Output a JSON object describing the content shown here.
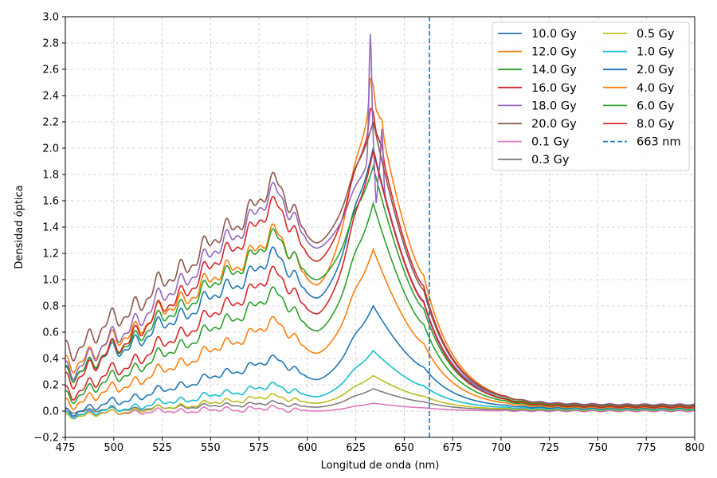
{
  "chart_data": {
    "type": "line",
    "title": "",
    "xlabel": "Longitud de onda (nm)",
    "ylabel": "Densidad óptica",
    "xlim": [
      475,
      800
    ],
    "ylim": [
      -0.2,
      3.0
    ],
    "x_ticks": [
      "475",
      "500",
      "525",
      "550",
      "575",
      "600",
      "625",
      "650",
      "675",
      "700",
      "725",
      "750",
      "775",
      "800"
    ],
    "y_ticks": [
      "−0.2",
      "0.0",
      "0.2",
      "0.4",
      "0.6",
      "0.8",
      "1.0",
      "1.2",
      "1.4",
      "1.6",
      "1.8",
      "2.0",
      "2.2",
      "2.4",
      "2.6",
      "2.8",
      "3.0"
    ],
    "grid": true,
    "legend_position": "top-right",
    "legend_columns": 2,
    "vline": {
      "x": 663,
      "name": "663 nm",
      "color": "#1f77b4",
      "style": "dashed"
    },
    "series": [
      {
        "name": "10.0 Gy",
        "color": "#1f77b4",
        "peak": 2.0,
        "vmid": 1.18,
        "vvalley": 0.86,
        "start": 0.28,
        "tail": 0.035,
        "noise": 0.05,
        "spike": 0.0
      },
      {
        "name": "12.0 Gy",
        "color": "#ff7f0e",
        "peak": 2.47,
        "vmid": 1.35,
        "vvalley": 0.96,
        "start": 0.35,
        "tail": 0.04,
        "noise": 0.055,
        "spike": 0.18
      },
      {
        "name": "14.0 Gy",
        "color": "#2ca02c",
        "peak": 1.86,
        "vmid": 1.32,
        "vvalley": 1.0,
        "start": 0.27,
        "tail": 0.04,
        "noise": 0.05,
        "spike": 0.0
      },
      {
        "name": "16.0 Gy",
        "color": "#d62728",
        "peak": 2.27,
        "vmid": 1.56,
        "vvalley": 1.14,
        "start": 0.22,
        "tail": 0.045,
        "noise": 0.055,
        "spike": 0.12
      },
      {
        "name": "18.0 Gy",
        "color": "#9467bd",
        "peak": 2.0,
        "vmid": 1.66,
        "vvalley": 1.24,
        "start": 0.3,
        "tail": 0.05,
        "noise": 0.06,
        "spike": 0.93
      },
      {
        "name": "20.0 Gy",
        "color": "#8c564b",
        "peak": 2.2,
        "vmid": 1.73,
        "vvalley": 1.28,
        "start": 0.45,
        "tail": 0.045,
        "noise": 0.065,
        "spike": 0.0
      },
      {
        "name": "0.1 Gy",
        "color": "#e377c2",
        "peak": 0.06,
        "vmid": 0.02,
        "vvalley": 0.0,
        "start": -0.02,
        "tail": 0.0,
        "noise": 0.015,
        "spike": 0.0
      },
      {
        "name": "0.3 Gy",
        "color": "#7f7f7f",
        "peak": 0.17,
        "vmid": 0.06,
        "vvalley": 0.03,
        "start": 0.0,
        "tail": 0.005,
        "noise": 0.012,
        "spike": 0.0
      },
      {
        "name": "0.5 Gy",
        "color": "#bcbd22",
        "peak": 0.27,
        "vmid": 0.11,
        "vvalley": 0.06,
        "start": -0.04,
        "tail": 0.01,
        "noise": 0.015,
        "spike": 0.0
      },
      {
        "name": "1.0 Gy",
        "color": "#17becf",
        "peak": 0.46,
        "vmid": 0.19,
        "vvalley": 0.11,
        "start": -0.03,
        "tail": 0.015,
        "noise": 0.02,
        "spike": 0.0
      },
      {
        "name": "2.0 Gy",
        "color": "#1f77b4",
        "peak": 0.8,
        "vmid": 0.39,
        "vvalley": 0.24,
        "start": -0.01,
        "tail": 0.02,
        "noise": 0.025,
        "spike": 0.0
      },
      {
        "name": "4.0 Gy",
        "color": "#ff7f0e",
        "peak": 1.23,
        "vmid": 0.67,
        "vvalley": 0.44,
        "start": 0.05,
        "tail": 0.025,
        "noise": 0.035,
        "spike": 0.0
      },
      {
        "name": "6.0 Gy",
        "color": "#2ca02c",
        "peak": 1.58,
        "vmid": 0.89,
        "vvalley": 0.61,
        "start": 0.1,
        "tail": 0.03,
        "noise": 0.04,
        "spike": 0.0
      },
      {
        "name": "8.0 Gy",
        "color": "#d62728",
        "peak": 1.98,
        "vmid": 1.04,
        "vvalley": 0.74,
        "start": 0.13,
        "tail": 0.03,
        "noise": 0.045,
        "spike": 0.0
      }
    ]
  }
}
